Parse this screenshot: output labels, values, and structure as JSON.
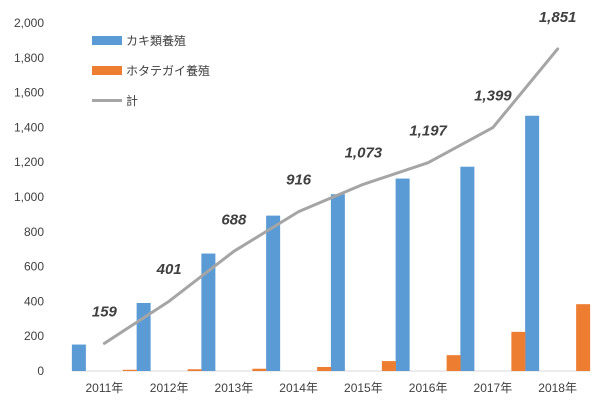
{
  "chart_data": {
    "type": "bar",
    "categories": [
      "2011年",
      "2012年",
      "2013年",
      "2014年",
      "2015年",
      "2016年",
      "2017年",
      "2018年"
    ],
    "series": [
      {
        "name": "カキ類養殖",
        "kind": "bar",
        "color": "#5b9bd5",
        "values": [
          152,
          391,
          675,
          893,
          1016,
          1106,
          1174,
          1467
        ]
      },
      {
        "name": "ホタテガイ養殖",
        "kind": "bar",
        "color": "#ed7d31",
        "values": [
          7,
          10,
          13,
          23,
          57,
          91,
          225,
          384
        ]
      },
      {
        "name": "計",
        "kind": "line",
        "color": "#a5a5a5",
        "values": [
          159,
          401,
          688,
          916,
          1073,
          1197,
          1399,
          1851
        ]
      }
    ],
    "data_labels": [
      "159",
      "401",
      "688",
      "916",
      "1,073",
      "1,197",
      "1,399",
      "1,851"
    ],
    "yticks": [
      "0",
      "200",
      "400",
      "600",
      "800",
      "1,000",
      "1,200",
      "1,400",
      "1,600",
      "1,800",
      "2,000"
    ],
    "ylim": [
      0,
      2000
    ],
    "grid": false,
    "legend_position": "top-left",
    "title": "",
    "xlabel": "",
    "ylabel": ""
  }
}
